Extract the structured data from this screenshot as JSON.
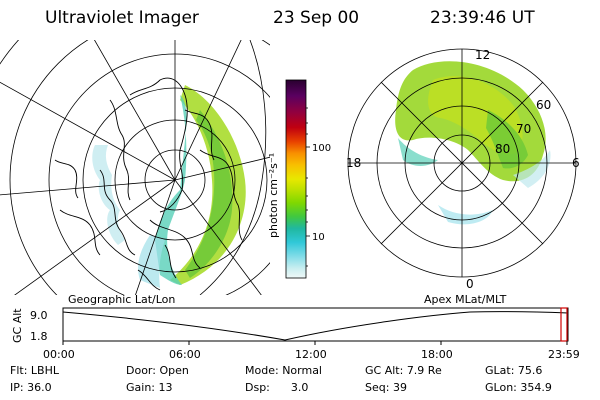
{
  "header": {
    "instrument": "Ultraviolet Imager",
    "date": "23 Sep 00",
    "time": "23:39:46 UT"
  },
  "colorbar": {
    "unit_label": "photon cm⁻²s⁻¹",
    "ticks": [
      "100",
      "10"
    ],
    "colors": [
      "#2a0030",
      "#5a0060",
      "#900040",
      "#c00010",
      "#e84000",
      "#f89000",
      "#f8c000",
      "#e8e800",
      "#b8e000",
      "#80d800",
      "#40c840",
      "#20b8a0",
      "#30c8d8",
      "#80dce8",
      "#c8eef0",
      "#f0f8f8"
    ]
  },
  "geo_map": {
    "label": "Geographic Lat/Lon"
  },
  "polar_map": {
    "label": "Apex MLat/MLT",
    "mlt_labels": {
      "top": "12",
      "right": "6",
      "bottom": "0",
      "left": "18"
    },
    "lat_labels": [
      "60",
      "70",
      "80"
    ]
  },
  "altitude_plot": {
    "axis_label": "GC Alt",
    "y_ticks": [
      "9.0",
      "1.8"
    ],
    "x_ticks": [
      "00:00",
      "06:00",
      "12:00",
      "18:00",
      "23:59"
    ]
  },
  "footer": {
    "flt_label": "Flt:",
    "flt_value": "LBHL",
    "ip_label": "IP:",
    "ip_value": "36.0",
    "door_label": "Door:",
    "door_value": "Open",
    "gain_label": "Gain:",
    "gain_value": "13",
    "mode_label": "Mode:",
    "mode_value": "Normal",
    "dsp_label": "Dsp:",
    "dsp_value": "3.0",
    "gcalt_label": "GC Alt:",
    "gcalt_value": "7.9 Re",
    "seq_label": "Seq:",
    "seq_value": "39",
    "glat_label": "GLat:",
    "glat_value": "75.6",
    "glon_label": "GLon:",
    "glon_value": "354.9"
  }
}
